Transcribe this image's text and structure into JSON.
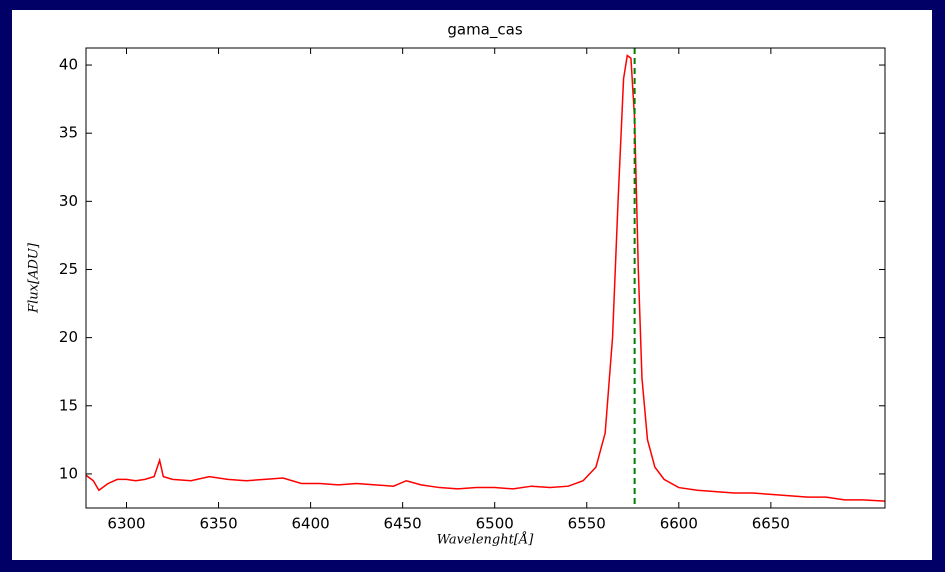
{
  "chart_data": {
    "type": "line",
    "title": "gama_cas",
    "x_label": "Wavelenght[Å]",
    "y_label": "Flux[ADU]",
    "x": [
      6278,
      6282,
      6285,
      6290,
      6295,
      6300,
      6305,
      6310,
      6315,
      6318,
      6320,
      6325,
      6335,
      6345,
      6355,
      6365,
      6375,
      6385,
      6395,
      6405,
      6415,
      6425,
      6435,
      6445,
      6452,
      6460,
      6470,
      6480,
      6490,
      6500,
      6510,
      6520,
      6530,
      6540,
      6548,
      6555,
      6560,
      6564,
      6567,
      6570,
      6572,
      6574,
      6576,
      6578,
      6580,
      6583,
      6587,
      6592,
      6600,
      6610,
      6620,
      6630,
      6640,
      6650,
      6660,
      6670,
      6680,
      6690,
      6700,
      6712
    ],
    "series": [
      {
        "color": "#ff0000",
        "values": [
          9.9,
          9.5,
          8.8,
          9.3,
          9.6,
          9.6,
          9.5,
          9.6,
          9.8,
          11.0,
          9.8,
          9.6,
          9.5,
          9.8,
          9.6,
          9.5,
          9.6,
          9.7,
          9.3,
          9.3,
          9.2,
          9.3,
          9.2,
          9.1,
          9.5,
          9.2,
          9.0,
          8.9,
          9.0,
          9.0,
          8.9,
          9.1,
          9.0,
          9.1,
          9.5,
          10.5,
          13,
          20,
          30,
          39,
          40.7,
          40.5,
          36,
          25,
          17,
          12.5,
          10.5,
          9.6,
          9.0,
          8.8,
          8.7,
          8.6,
          8.6,
          8.5,
          8.4,
          8.3,
          8.3,
          8.1,
          8.1,
          8.0
        ]
      }
    ],
    "vline": {
      "x": 6576,
      "color": "#008000"
    },
    "xlim": [
      6278,
      6712
    ],
    "ylim": [
      7.5,
      41.25
    ],
    "xticks": [
      6300,
      6350,
      6400,
      6450,
      6500,
      6550,
      6600,
      6650
    ],
    "yticks": [
      10,
      15,
      20,
      25,
      30,
      35,
      40
    ]
  }
}
